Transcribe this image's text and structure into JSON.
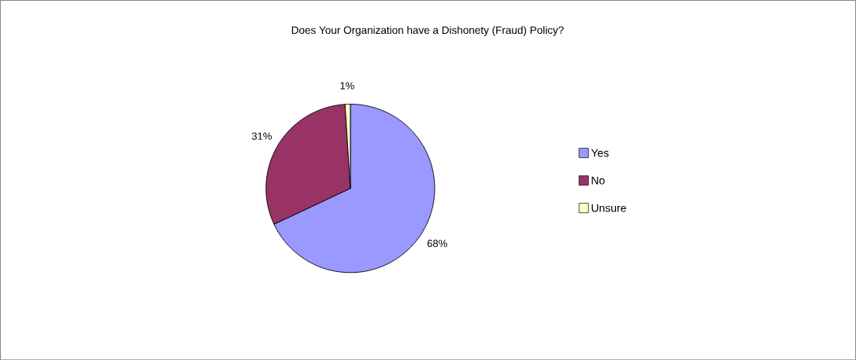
{
  "chart_data": {
    "type": "pie",
    "title": "Does Your Organization have a Dishonety (Fraud) Policy?",
    "categories": [
      "Yes",
      "No",
      "Unsure"
    ],
    "values": [
      68,
      31,
      1
    ],
    "colors": [
      "#9999ff",
      "#993366",
      "#ffffcc"
    ],
    "value_labels": [
      "68%",
      "31%",
      "1%"
    ],
    "legend": "right"
  }
}
